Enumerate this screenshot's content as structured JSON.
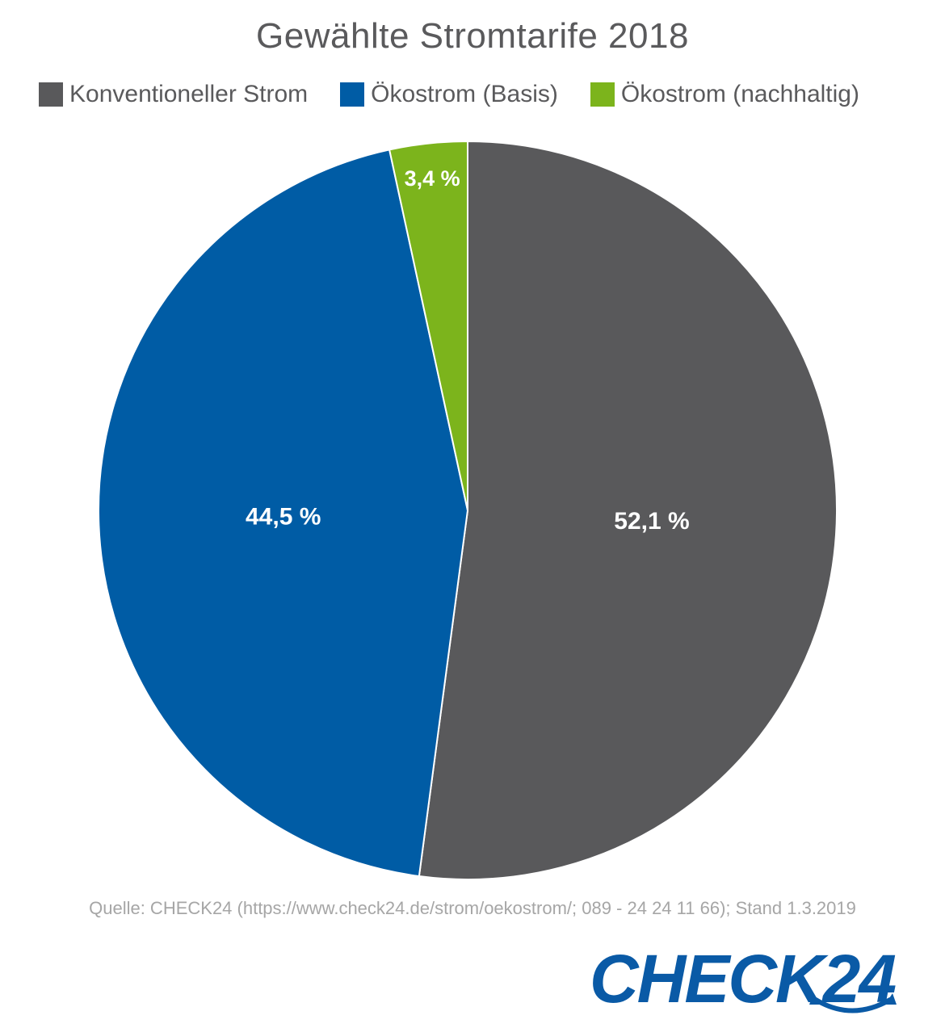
{
  "chart_data": {
    "type": "pie",
    "title": "Gewählte Stromtarife 2018",
    "slices": [
      {
        "name": "Konventioneller Strom",
        "value": 52.1,
        "label": "52,1 %",
        "color": "#59595b"
      },
      {
        "name": "Ökostrom (Basis)",
        "value": 44.5,
        "label": "44,5 %",
        "color": "#005ca5"
      },
      {
        "name": "Ökostrom (nachhaltig)",
        "value": 3.4,
        "label": "3,4 %",
        "color": "#7cb41c"
      }
    ],
    "legend_position": "top",
    "start_angle": "top, clockwise"
  },
  "source": "Quelle: CHECK24 (https://www.check24.de/strom/oekostrom/; 089 - 24 24 11 66); Stand 1.3.2019",
  "logo": {
    "text": "CHECK24",
    "color": "#0a5aa6",
    "icon": "smile-arrow-icon"
  }
}
